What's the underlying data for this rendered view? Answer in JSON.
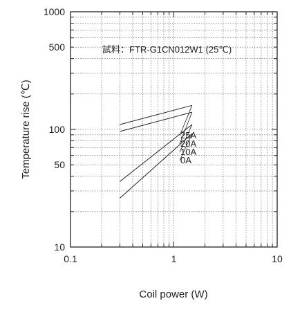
{
  "chart_data": {
    "type": "line",
    "xlabel": "Coil power (W)",
    "ylabel": "Temperature rise (℃)",
    "x_scale": "log",
    "y_scale": "log",
    "xlim": [
      0.1,
      10
    ],
    "ylim": [
      10,
      1000
    ],
    "x_ticks": [
      "0.1",
      "1",
      "10"
    ],
    "y_ticks": [
      "10",
      "50",
      "100",
      "500",
      "1000"
    ],
    "grid": true,
    "annotation": "試料：FTR-G1CN012W1 (25℃)",
    "series": [
      {
        "name": "25A",
        "x": [
          0.3,
          1.5
        ],
        "y": [
          110,
          160
        ]
      },
      {
        "name": "20A",
        "x": [
          0.3,
          1.5
        ],
        "y": [
          96,
          140
        ]
      },
      {
        "name": "10A",
        "x": [
          0.3,
          1.5
        ],
        "y": [
          36,
          110
        ]
      },
      {
        "name": "0A",
        "x": [
          0.3,
          1.5
        ],
        "y": [
          26,
          92
        ]
      }
    ],
    "colors": {
      "line": "#222222",
      "grid": "#555555",
      "axis": "#222222"
    }
  }
}
